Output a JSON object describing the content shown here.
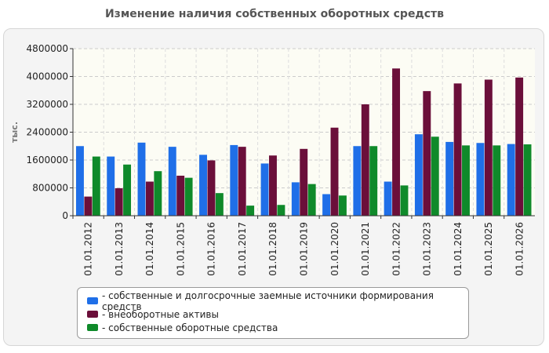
{
  "chart_data": {
    "type": "bar",
    "title": "Изменение наличия собственных оборотных средств",
    "ylabel": "тыс.",
    "xlabel": "",
    "ylim": [
      0,
      4800000
    ],
    "yticks": [
      0,
      800000,
      1600000,
      2400000,
      3200000,
      4000000,
      4800000
    ],
    "grid": true,
    "legend_position": "bottom",
    "categories": [
      "01.01.2012",
      "01.01.2013",
      "01.01.2014",
      "01.01.2015",
      "01.01.2016",
      "01.01.2017",
      "01.01.2018",
      "01.01.2019",
      "01.01.2020",
      "01.01.2021",
      "01.01.2022",
      "01.01.2023",
      "01.01.2024",
      "01.01.2025",
      "01.01.2026"
    ],
    "series": [
      {
        "name": "- собственные и долгосрочные заемные источники формирования средств",
        "color": "#1f6fe8",
        "values": [
          2000000,
          1700000,
          2100000,
          1980000,
          1750000,
          2030000,
          1500000,
          960000,
          620000,
          2000000,
          980000,
          2340000,
          2120000,
          2090000,
          2060000
        ]
      },
      {
        "name": "- внеоборотные активы",
        "color": "#6b0f3a",
        "values": [
          550000,
          790000,
          980000,
          1150000,
          1590000,
          1980000,
          1730000,
          1920000,
          2530000,
          3200000,
          4230000,
          3580000,
          3800000,
          3910000,
          3970000
        ]
      },
      {
        "name": "- собственные оборотные средства",
        "color": "#0f8a2a",
        "values": [
          1700000,
          1470000,
          1280000,
          1090000,
          650000,
          290000,
          310000,
          910000,
          580000,
          2000000,
          870000,
          2270000,
          2020000,
          2020000,
          2050000
        ]
      }
    ]
  }
}
